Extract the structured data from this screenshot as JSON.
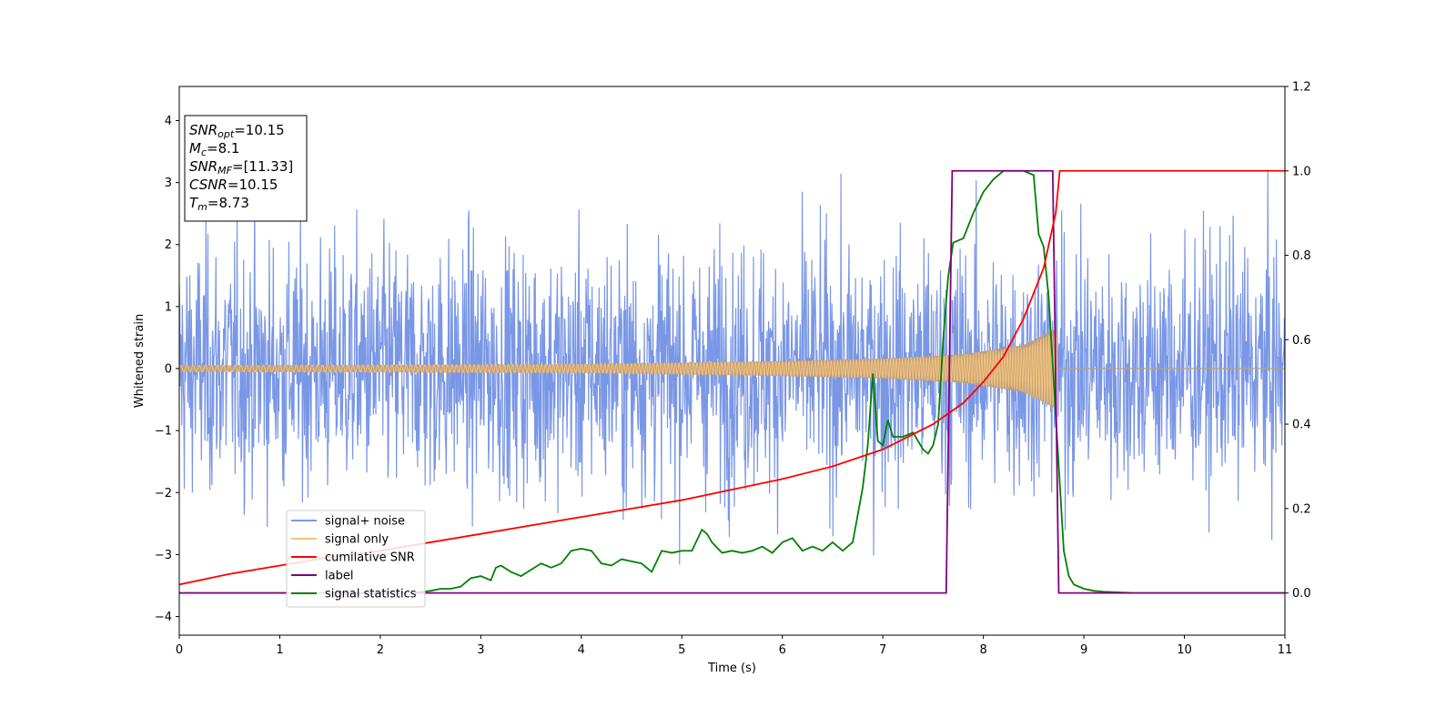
{
  "chart_data": {
    "type": "line",
    "title": "",
    "xlabel": "Time (s)",
    "ylabel": "Whitened strain",
    "xlim": [
      0,
      11
    ],
    "ylim": [
      -4.3,
      4.55
    ],
    "y2lim": [
      -0.1,
      1.2
    ],
    "xticks": [
      0,
      1,
      2,
      3,
      4,
      5,
      6,
      7,
      8,
      9,
      10,
      11
    ],
    "yticks": [
      -4,
      -3,
      -2,
      -1,
      0,
      1,
      2,
      3,
      4
    ],
    "y2ticks": [
      0.0,
      0.2,
      0.4,
      0.6,
      0.8,
      1.0,
      1.2
    ],
    "grid": false,
    "legend_position": "lower-left",
    "annotation": {
      "lines": [
        {
          "base": "SNR",
          "sub": "opt",
          "value": "=10.15"
        },
        {
          "base": "M",
          "sub": "c",
          "value": "=8.1"
        },
        {
          "base": "SNR",
          "sub": "MF",
          "value": "=[11.33]"
        },
        {
          "base": "CSNR",
          "sub": "",
          "value": "=10.15"
        },
        {
          "base": "T",
          "sub": "m",
          "value": "=8.73"
        }
      ]
    },
    "series": [
      {
        "name": "signal+ noise",
        "color": "#7a97e6",
        "axis": "left",
        "kind": "noise",
        "t_start": 0,
        "t_end": 11,
        "samples": 2200,
        "noise_std": 1.0
      },
      {
        "name": "signal only",
        "color": "#f5c27a",
        "overlap_color": "#bf9f7a",
        "axis": "left",
        "kind": "chirp",
        "t_start": 0,
        "t_merge": 8.73,
        "amplitude_envelope": [
          [
            0,
            0.05
          ],
          [
            2,
            0.06
          ],
          [
            4,
            0.07
          ],
          [
            6,
            0.12
          ],
          [
            7,
            0.16
          ],
          [
            7.8,
            0.23
          ],
          [
            8.4,
            0.38
          ],
          [
            8.73,
            0.65
          ]
        ]
      },
      {
        "name": "cumilative SNR",
        "color": "#ff0000",
        "axis": "right",
        "x": [
          0,
          0.5,
          1,
          1.5,
          2,
          2.5,
          3,
          3.5,
          4,
          4.5,
          5,
          5.5,
          6,
          6.5,
          7,
          7.5,
          7.8,
          8.0,
          8.2,
          8.4,
          8.6,
          8.72,
          8.76,
          9,
          10,
          11
        ],
        "y": [
          0.02,
          0.045,
          0.065,
          0.085,
          0.1,
          0.12,
          0.14,
          0.16,
          0.18,
          0.2,
          0.22,
          0.245,
          0.27,
          0.3,
          0.34,
          0.4,
          0.45,
          0.5,
          0.56,
          0.65,
          0.77,
          0.9,
          1.0,
          1.0,
          1.0,
          1.0
        ]
      },
      {
        "name": "label",
        "color": "#800080",
        "axis": "right",
        "x": [
          0,
          7.63,
          7.69,
          8.69,
          8.75,
          11
        ],
        "y": [
          0,
          0,
          1,
          1,
          0,
          0
        ]
      },
      {
        "name": "signal statistics",
        "color": "#008000",
        "axis": "right",
        "x": [
          0,
          1,
          2,
          2.3,
          2.5,
          2.6,
          2.7,
          2.8,
          2.9,
          3.0,
          3.1,
          3.15,
          3.2,
          3.3,
          3.4,
          3.5,
          3.6,
          3.7,
          3.8,
          3.9,
          4.0,
          4.1,
          4.2,
          4.3,
          4.4,
          4.5,
          4.6,
          4.7,
          4.8,
          4.9,
          5.0,
          5.1,
          5.2,
          5.25,
          5.3,
          5.4,
          5.5,
          5.6,
          5.7,
          5.8,
          5.9,
          6.0,
          6.1,
          6.2,
          6.3,
          6.4,
          6.5,
          6.6,
          6.7,
          6.8,
          6.85,
          6.9,
          6.95,
          7.0,
          7.05,
          7.1,
          7.2,
          7.3,
          7.35,
          7.4,
          7.45,
          7.5,
          7.55,
          7.6,
          7.65,
          7.7,
          7.8,
          7.9,
          8.0,
          8.1,
          8.2,
          8.3,
          8.4,
          8.5,
          8.55,
          8.6,
          8.65,
          8.7,
          8.75,
          8.8,
          8.85,
          8.9,
          9.0,
          9.1,
          9.2,
          9.5,
          10,
          11
        ],
        "y": [
          0,
          0,
          0,
          0.0,
          0.005,
          0.01,
          0.01,
          0.015,
          0.035,
          0.04,
          0.03,
          0.06,
          0.065,
          0.05,
          0.04,
          0.055,
          0.07,
          0.06,
          0.07,
          0.1,
          0.105,
          0.1,
          0.07,
          0.065,
          0.08,
          0.075,
          0.07,
          0.05,
          0.1,
          0.095,
          0.1,
          0.1,
          0.15,
          0.14,
          0.12,
          0.095,
          0.1,
          0.095,
          0.1,
          0.11,
          0.095,
          0.12,
          0.13,
          0.1,
          0.11,
          0.1,
          0.12,
          0.1,
          0.12,
          0.25,
          0.35,
          0.52,
          0.36,
          0.35,
          0.41,
          0.37,
          0.37,
          0.38,
          0.36,
          0.34,
          0.33,
          0.35,
          0.4,
          0.6,
          0.75,
          0.83,
          0.84,
          0.9,
          0.95,
          0.98,
          1.0,
          1.0,
          1.0,
          0.99,
          0.85,
          0.82,
          0.7,
          0.5,
          0.3,
          0.1,
          0.04,
          0.02,
          0.01,
          0.005,
          0.003,
          0.0,
          0.0,
          0.0
        ]
      }
    ]
  }
}
